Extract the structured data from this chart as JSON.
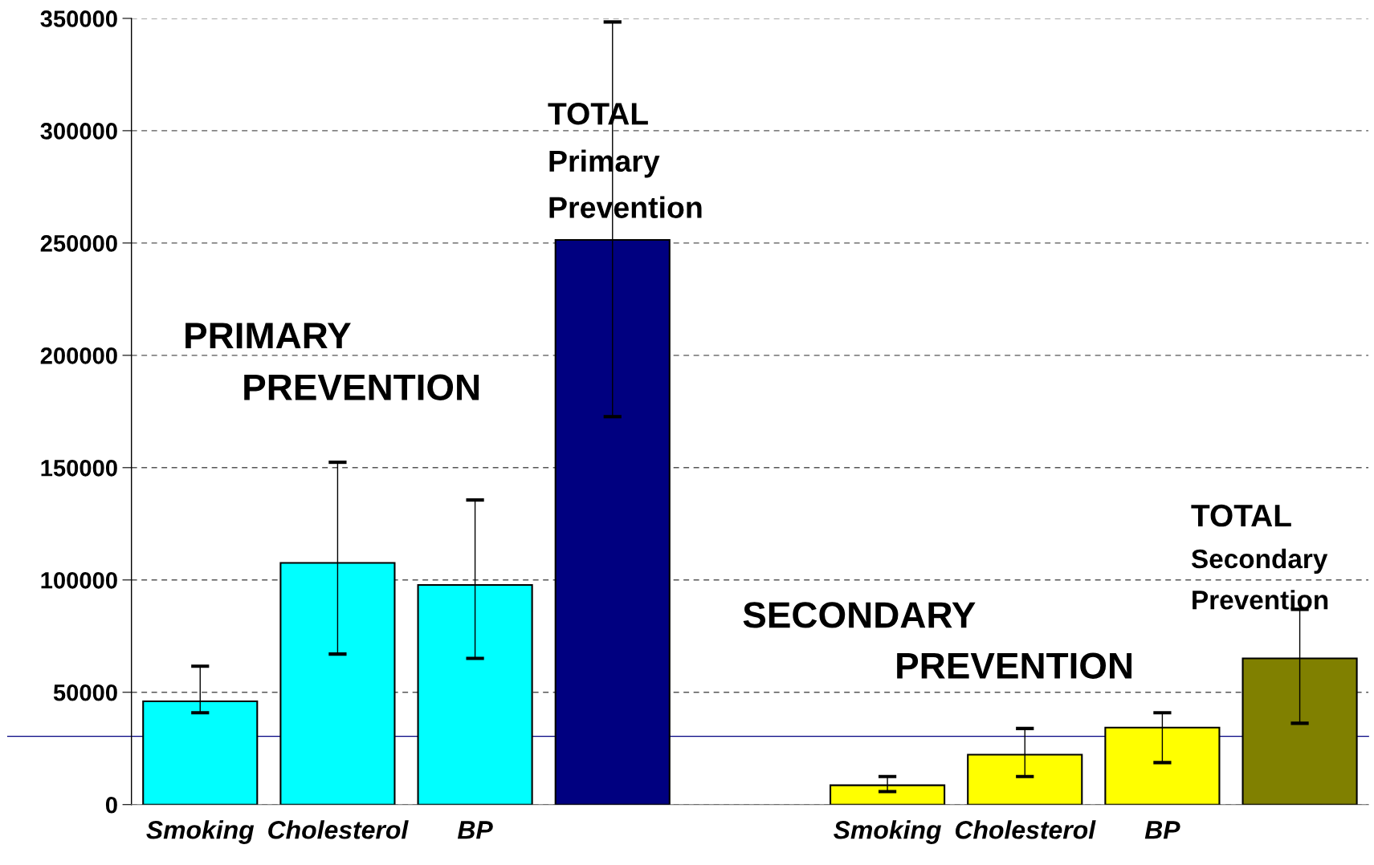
{
  "chart_data": {
    "type": "bar",
    "categories": [
      "Smoking",
      "Cholesterol",
      "BP",
      null,
      null,
      "Smoking",
      "Cholesterol",
      "BP",
      null
    ],
    "values": [
      46000,
      107600,
      97800,
      251400,
      null,
      8600,
      22200,
      34300,
      65100
    ],
    "colors": [
      "#00ffff",
      "#00ffff",
      "#00ffff",
      "#000080",
      null,
      "#ffff00",
      "#ffff00",
      "#ffff00",
      "#808000"
    ],
    "errors": [
      [
        40900,
        61600
      ],
      [
        67000,
        152400
      ],
      [
        65100,
        135600
      ],
      [
        172700,
        348400
      ],
      null,
      [
        5800,
        12500
      ],
      [
        12500,
        33900
      ],
      [
        18700,
        40900
      ],
      [
        36200,
        86900
      ]
    ],
    "ylim": [
      0,
      350000
    ],
    "yticks": [
      0,
      50000,
      100000,
      150000,
      200000,
      250000,
      300000,
      350000
    ],
    "grid": "y",
    "ref_lines": [
      {
        "axis": "y",
        "value": 30400,
        "color": "#000080"
      }
    ],
    "annotations": [
      "PRIMARY",
      "PREVENTION",
      "TOTAL",
      "Primary",
      "Prevention",
      "SECONDARY",
      "PREVENTION",
      "TOTAL",
      "Secondary",
      "Prevention"
    ]
  }
}
